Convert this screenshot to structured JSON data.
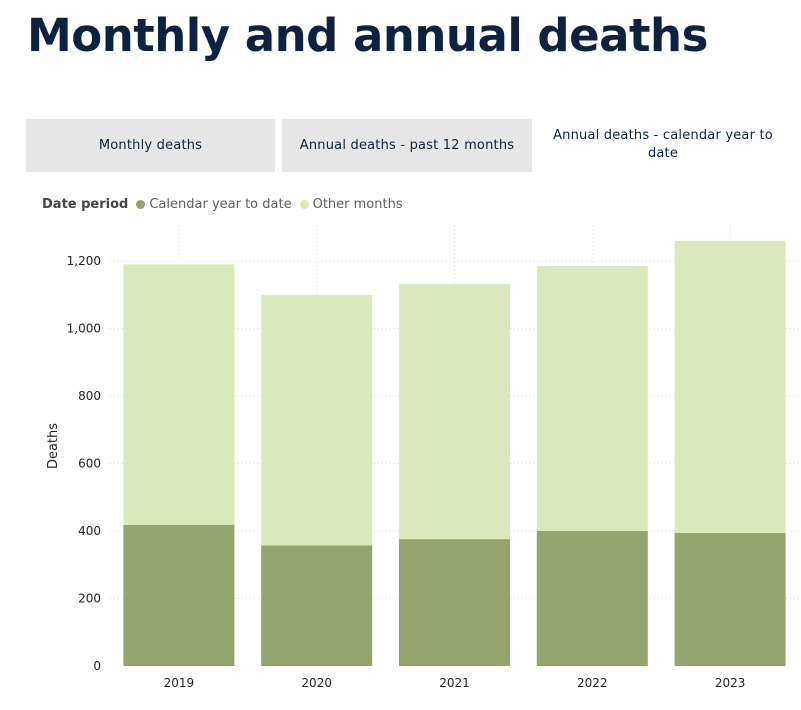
{
  "page": {
    "title": "Monthly and annual deaths"
  },
  "tabs": [
    {
      "label": "Monthly deaths"
    },
    {
      "label": "Annual deaths - past 12 months"
    },
    {
      "label": "Annual deaths - calendar year to date"
    }
  ],
  "legend": {
    "title": "Date period",
    "items": [
      {
        "label": "Calendar year to date",
        "color": "#93a46c"
      },
      {
        "label": "Other months",
        "color": "#d9e9bc"
      }
    ]
  },
  "chart_data": {
    "type": "bar",
    "stacked": true,
    "categories": [
      "2019",
      "2020",
      "2021",
      "2022",
      "2023"
    ],
    "series": [
      {
        "name": "Calendar year to date",
        "color": "#93a46c",
        "values": [
          418,
          357,
          376,
          400,
          394
        ]
      },
      {
        "name": "Other months",
        "color": "#d9e9bc",
        "values": [
          772,
          742,
          756,
          785,
          866
        ]
      }
    ],
    "totals": [
      1190,
      1099,
      1132,
      1185,
      1260
    ],
    "ylabel": "Deaths",
    "xlabel": "",
    "ylim": [
      0,
      1200
    ],
    "yticks": [
      "0",
      "200",
      "400",
      "600",
      "800",
      "1,000",
      "1,200"
    ],
    "ytick_values": [
      0,
      200,
      400,
      600,
      800,
      1000,
      1200
    ],
    "grid": true,
    "legend_position": "top-left"
  }
}
